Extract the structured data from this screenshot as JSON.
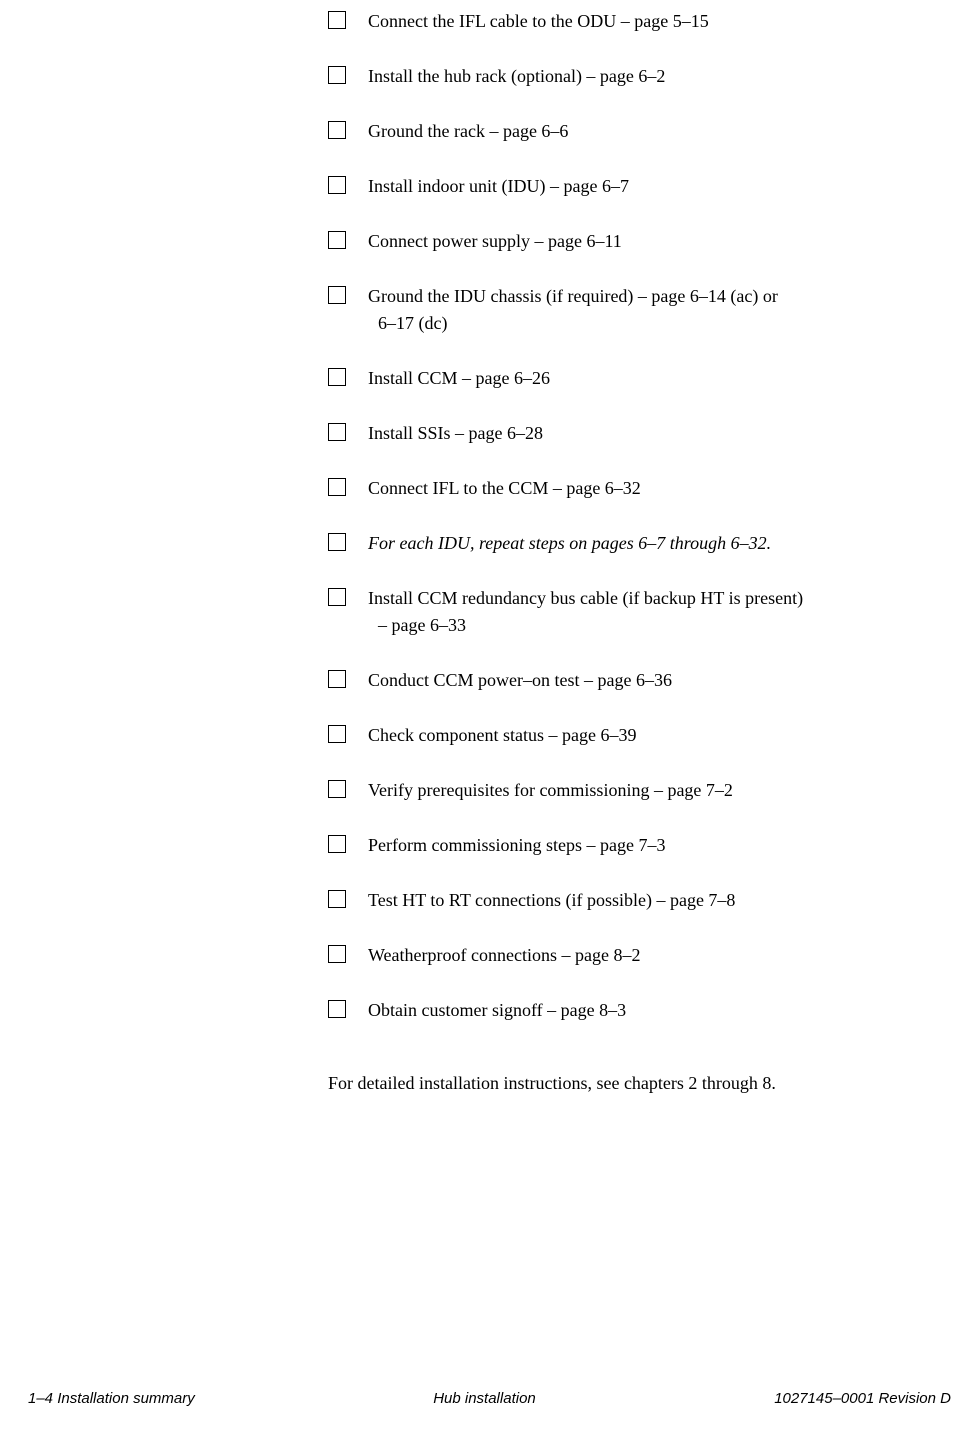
{
  "checklist": {
    "items": [
      {
        "text": "Connect the IFL cable to the ODU – page 5–15",
        "italic": false
      },
      {
        "text": "Install the hub rack (optional) – page 6–2",
        "italic": false
      },
      {
        "text": "Ground the rack – page 6–6",
        "italic": false
      },
      {
        "text": "Install indoor unit (IDU) – page 6–7",
        "italic": false
      },
      {
        "text": "Connect power supply – page 6–11",
        "italic": false
      },
      {
        "text": "Ground the IDU chassis (if required) – page 6–14 (ac) or",
        "continuation": "6–17 (dc)",
        "italic": false
      },
      {
        "text": "Install CCM – page 6–26",
        "italic": false
      },
      {
        "text": "Install SSIs – page 6–28",
        "italic": false
      },
      {
        "text": "Connect IFL to the CCM – page 6–32",
        "italic": false
      },
      {
        "text": "For each IDU, repeat steps on pages 6–7 through 6–32.",
        "italic": true
      },
      {
        "text": "Install CCM redundancy bus cable (if backup HT is present)",
        "continuation": "– page 6–33",
        "italic": false
      },
      {
        "text": "Conduct CCM power–on test – page 6–36",
        "italic": false
      },
      {
        "text": "Check component status – page 6–39",
        "italic": false
      },
      {
        "text": "Verify prerequisites for commissioning – page 7–2",
        "italic": false
      },
      {
        "text": "Perform commissioning steps – page 7–3",
        "italic": false
      },
      {
        "text": "Test HT to RT connections (if possible) – page 7–8",
        "italic": false
      },
      {
        "text": "Weatherproof connections – page 8–2",
        "italic": false
      },
      {
        "text": "Obtain customer signoff – page 8–3",
        "italic": false
      }
    ],
    "footer_note": "For detailed installation instructions, see chapters 2 through 8."
  },
  "footer": {
    "left": "1–4  Installation summary",
    "center": "Hub installation",
    "right": "1027145–0001   Revision D"
  }
}
